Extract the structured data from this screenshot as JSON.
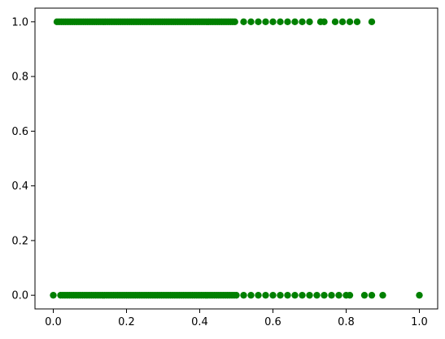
{
  "chart_data": {
    "type": "scatter",
    "title": "",
    "xlabel": "",
    "ylabel": "",
    "xlim": [
      -0.05,
      1.05
    ],
    "ylim": [
      -0.05,
      1.05
    ],
    "xticks": [
      0.0,
      0.2,
      0.4,
      0.6,
      0.8,
      1.0
    ],
    "xtick_labels": [
      "0.0",
      "0.2",
      "0.4",
      "0.6",
      "0.8",
      "1.0"
    ],
    "yticks": [
      0.0,
      0.2,
      0.4,
      0.6,
      0.8,
      1.0
    ],
    "ytick_labels": [
      "0.0",
      "0.2",
      "0.4",
      "0.6",
      "0.8",
      "1.0"
    ],
    "grid": false,
    "marker_color": "#008000",
    "series": [
      {
        "points_y1_dense_range": [
          0.01,
          0.5
        ],
        "points_y1_sparse_x": [
          0.52,
          0.54,
          0.56,
          0.58,
          0.6,
          0.62,
          0.64,
          0.66,
          0.68,
          0.7,
          0.73,
          0.74,
          0.77,
          0.79,
          0.81,
          0.83,
          0.87
        ],
        "points_y0_dense_range": [
          0.02,
          0.5
        ],
        "points_y0_sparse_x": [
          0.0,
          0.52,
          0.54,
          0.56,
          0.58,
          0.6,
          0.62,
          0.64,
          0.66,
          0.68,
          0.7,
          0.72,
          0.74,
          0.76,
          0.78,
          0.8,
          0.81,
          0.85,
          0.87,
          0.9,
          1.0
        ]
      }
    ]
  }
}
